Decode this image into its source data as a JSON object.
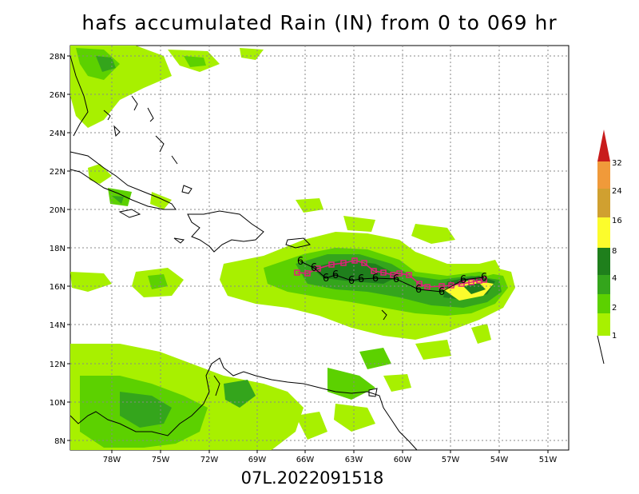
{
  "title": "hafs accumulated Rain (IN) from 0 to 069 hr",
  "footer": "07L.2022091518",
  "lon_ticks": [
    "78W",
    "75W",
    "72W",
    "69W",
    "66W",
    "63W",
    "60W",
    "57W",
    "54W",
    "51W"
  ],
  "lat_ticks": [
    "28N",
    "26N",
    "24N",
    "22N",
    "20N",
    "18N",
    "16N",
    "14N",
    "12N",
    "10N",
    "8N"
  ],
  "colorbar": {
    "labels": [
      "1",
      "2",
      "4",
      "8",
      "16",
      "24",
      "32"
    ],
    "colors": [
      "#a8f000",
      "#5cd100",
      "#34a51c",
      "#1f7f1c",
      "#fcfc2c",
      "#d0a030",
      "#f09a3a",
      "#c81c1c"
    ]
  },
  "track_markers": {
    "forecast_symbol": "6",
    "observed_symbol": "square",
    "track_color": "#e0207a"
  },
  "colors": {
    "grid": "#888888",
    "coast": "#000000"
  }
}
